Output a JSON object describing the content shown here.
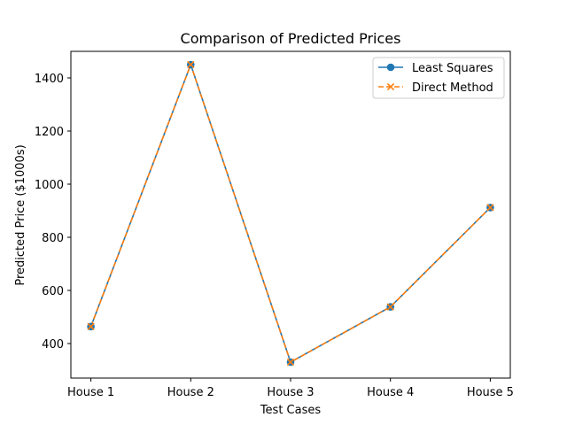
{
  "chart_data": {
    "type": "line",
    "title": "Comparison of Predicted Prices",
    "xlabel": "Test Cases",
    "ylabel": "Predicted Price ($1000s)",
    "categories": [
      "House 1",
      "House 2",
      "House 3",
      "House 4",
      "House 5"
    ],
    "ylim": [
      270,
      1500
    ],
    "yticks": [
      400,
      600,
      800,
      1000,
      1200,
      1400
    ],
    "grid": false,
    "legend_position": "top-right",
    "series": [
      {
        "name": "Least Squares",
        "values": [
          464,
          1450,
          330,
          538,
          912
        ],
        "color": "#1f77b4",
        "marker": "circle",
        "line_style": "solid"
      },
      {
        "name": "Direct Method",
        "values": [
          464,
          1450,
          330,
          538,
          912
        ],
        "color": "#ff7f0e",
        "marker": "x",
        "line_style": "dashed"
      }
    ]
  }
}
